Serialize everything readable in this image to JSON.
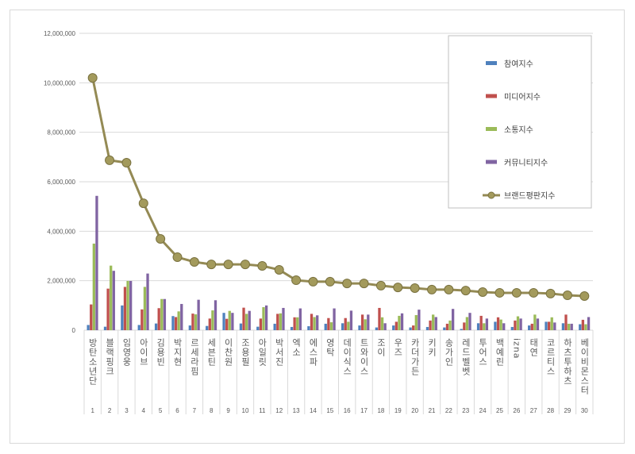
{
  "chart_data": {
    "type": "bar+line",
    "ylim": [
      0,
      12000000
    ],
    "yticks": [
      "0",
      "2,000,000",
      "4,000,000",
      "6,000,000",
      "8,000,000",
      "10,000,000",
      "12,000,000"
    ],
    "grid": true,
    "legend_position": "top-right",
    "categories": [
      "방탄소년단",
      "블랙핑크",
      "임영웅",
      "아이브",
      "김용빈",
      "박지현",
      "르세라핌",
      "세븐틴",
      "이찬원",
      "조용필",
      "아일릿",
      "박서진",
      "엑소",
      "에스파",
      "영탁",
      "데이식스",
      "트와이스",
      "조이",
      "우즈",
      "카더가든",
      "키키",
      "송가인",
      "레드벨벳",
      "투어스",
      "백예린",
      "izna",
      "태연",
      "코르티스",
      "하츠투하츠",
      "베이비몬스터"
    ],
    "ranks": [
      "1",
      "2",
      "3",
      "4",
      "5",
      "6",
      "7",
      "8",
      "9",
      "10",
      "11",
      "12",
      "13",
      "14",
      "15",
      "16",
      "17",
      "18",
      "19",
      "20",
      "21",
      "22",
      "23",
      "24",
      "25",
      "26",
      "27",
      "28",
      "29",
      "30"
    ],
    "series": [
      {
        "name": "참여지수",
        "type": "bar",
        "color": "#4f81bd",
        "values": [
          210000,
          140000,
          1000000,
          210000,
          270000,
          570000,
          190000,
          170000,
          700000,
          270000,
          140000,
          260000,
          130000,
          160000,
          260000,
          280000,
          190000,
          110000,
          190000,
          110000,
          130000,
          110000,
          50000,
          280000,
          340000,
          130000,
          190000,
          340000,
          280000,
          240000
        ]
      },
      {
        "name": "미디어지수",
        "type": "bar",
        "color": "#c0504d",
        "values": [
          1040000,
          1680000,
          1750000,
          840000,
          890000,
          530000,
          670000,
          470000,
          460000,
          910000,
          470000,
          660000,
          520000,
          660000,
          490000,
          490000,
          630000,
          900000,
          340000,
          190000,
          390000,
          260000,
          310000,
          580000,
          520000,
          390000,
          260000,
          340000,
          630000,
          420000
        ]
      },
      {
        "name": "소통지수",
        "type": "bar",
        "color": "#9bbb59",
        "values": [
          3500000,
          2610000,
          1990000,
          1750000,
          1260000,
          760000,
          640000,
          800000,
          780000,
          660000,
          930000,
          680000,
          520000,
          530000,
          320000,
          340000,
          440000,
          520000,
          580000,
          610000,
          630000,
          390000,
          530000,
          280000,
          430000,
          560000,
          630000,
          520000,
          260000,
          240000
        ]
      },
      {
        "name": "커뮤니티지수",
        "type": "bar",
        "color": "#8064a2",
        "values": [
          5430000,
          2400000,
          1990000,
          2290000,
          1260000,
          1060000,
          1230000,
          1210000,
          700000,
          780000,
          1000000,
          900000,
          880000,
          600000,
          880000,
          790000,
          630000,
          280000,
          680000,
          830000,
          530000,
          860000,
          700000,
          470000,
          280000,
          470000,
          470000,
          310000,
          260000,
          530000
        ]
      },
      {
        "name": "브랜드평판지수",
        "type": "line",
        "color": "#948a54",
        "values": [
          10200000,
          6870000,
          6770000,
          5130000,
          3690000,
          2950000,
          2760000,
          2660000,
          2660000,
          2660000,
          2600000,
          2440000,
          2020000,
          1960000,
          1960000,
          1890000,
          1890000,
          1800000,
          1730000,
          1700000,
          1640000,
          1640000,
          1600000,
          1540000,
          1510000,
          1510000,
          1510000,
          1480000,
          1410000,
          1380000
        ]
      }
    ]
  }
}
